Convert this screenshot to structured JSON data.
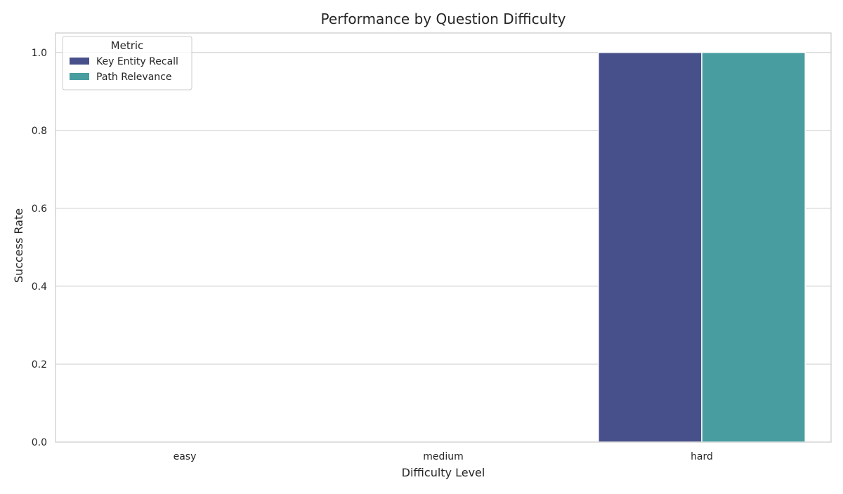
{
  "chart_data": {
    "type": "bar",
    "title": "Performance by Question Difficulty",
    "xlabel": "Difficulty Level",
    "ylabel": "Success Rate",
    "categories": [
      "easy",
      "medium",
      "hard"
    ],
    "series": [
      {
        "name": "Key Entity Recall",
        "values": [
          0,
          0,
          1.0
        ],
        "color": "#47508a"
      },
      {
        "name": "Path Relevance",
        "values": [
          0,
          0,
          1.0
        ],
        "color": "#479d9f"
      }
    ],
    "ylim": [
      0,
      1.05
    ],
    "yticks": [
      0.0,
      0.2,
      0.4,
      0.6,
      0.8,
      1.0
    ],
    "ytick_labels": [
      "0.0",
      "0.2",
      "0.4",
      "0.6",
      "0.8",
      "1.0"
    ],
    "grid": true,
    "legend": {
      "title": "Metric",
      "placement": "top-left"
    }
  }
}
